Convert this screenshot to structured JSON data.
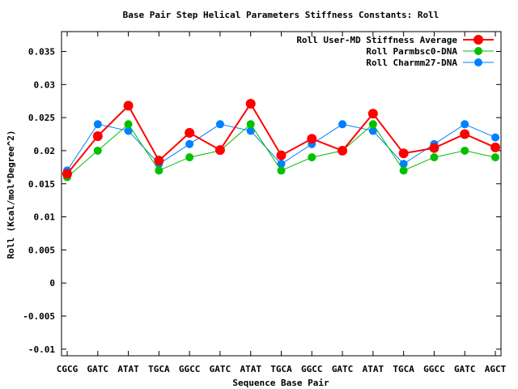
{
  "chart_data": {
    "type": "line",
    "title": "Base Pair Step Helical Parameters Stiffness Constants: Roll",
    "xlabel": "Sequence Base Pair",
    "ylabel": "Roll (Kcal/mol*Degree^2)",
    "categories": [
      "CGCG",
      "GATC",
      "ATAT",
      "TGCA",
      "GGCC",
      "GATC",
      "ATAT",
      "TGCA",
      "GGCC",
      "GATC",
      "ATAT",
      "TGCA",
      "GGCC",
      "GATC",
      "AGCT"
    ],
    "ylim": [
      -0.011,
      0.038
    ],
    "yticks": [
      "-0.01",
      "-0.005",
      "0",
      "0.005",
      "0.01",
      "0.015",
      "0.02",
      "0.025",
      "0.03",
      "0.035"
    ],
    "legend_position": "top-right",
    "grid": false,
    "series": [
      {
        "name": "Roll User-MD Stiffness Average",
        "color": "#ff0000",
        "values": [
          0.0165,
          0.0222,
          0.0268,
          0.0185,
          0.0227,
          0.0201,
          0.0271,
          0.0193,
          0.0218,
          0.02,
          0.0256,
          0.0196,
          0.0204,
          0.0225,
          0.0205
        ]
      },
      {
        "name": "Roll Parmbsc0-DNA",
        "color": "#00c000",
        "values": [
          0.016,
          0.02,
          0.024,
          0.017,
          0.019,
          0.02,
          0.024,
          0.017,
          0.019,
          0.02,
          0.024,
          0.017,
          0.019,
          0.02,
          0.019
        ]
      },
      {
        "name": "Roll Charmm27-DNA",
        "color": "#0080ff",
        "values": [
          0.017,
          0.024,
          0.023,
          0.018,
          0.021,
          0.024,
          0.023,
          0.018,
          0.021,
          0.024,
          0.023,
          0.018,
          0.021,
          0.024,
          0.022
        ]
      }
    ]
  }
}
